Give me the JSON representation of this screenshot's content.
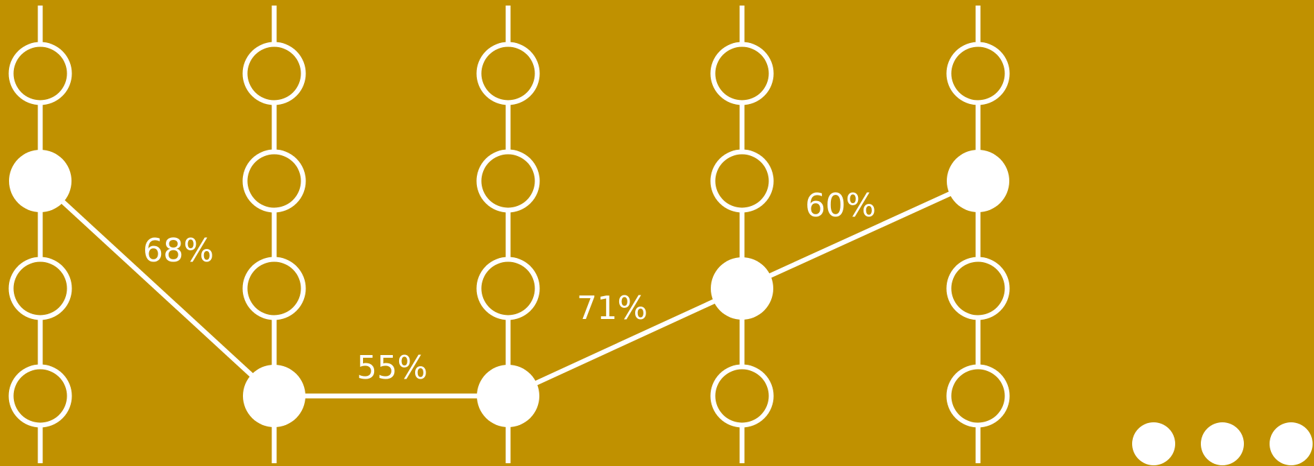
{
  "diagram": {
    "type": "state-trellis",
    "background_color": "#c09100",
    "foreground_color": "#ffffff",
    "num_columns": 5,
    "num_states": 4,
    "path_states": [
      1,
      3,
      3,
      2,
      1
    ],
    "transitions": [
      {
        "from_column": 0,
        "to_column": 1,
        "label": "68%"
      },
      {
        "from_column": 1,
        "to_column": 2,
        "label": "55%"
      },
      {
        "from_column": 2,
        "to_column": 3,
        "label": "71%"
      },
      {
        "from_column": 3,
        "to_column": 4,
        "label": "60%"
      }
    ],
    "continuation": "ellipsis-dots"
  }
}
